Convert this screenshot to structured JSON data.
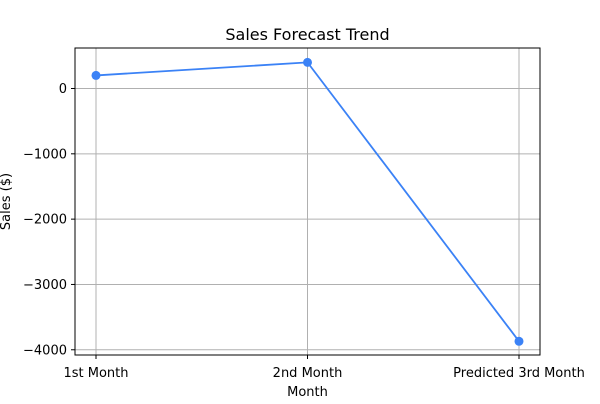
{
  "chart_data": {
    "type": "line",
    "title": "Sales Forecast Trend",
    "xlabel": "Month",
    "ylabel": "Sales ($)",
    "categories": [
      "1st Month",
      "2nd Month",
      "Predicted 3rd Month"
    ],
    "series": [
      {
        "values": [
          200,
          400,
          -3870
        ],
        "color": "#3b82f6",
        "marker": "circle"
      }
    ],
    "yticks": [
      0,
      -1000,
      -2000,
      -3000,
      -4000
    ],
    "ylim": [
      -4080,
      620
    ],
    "grid": true
  }
}
